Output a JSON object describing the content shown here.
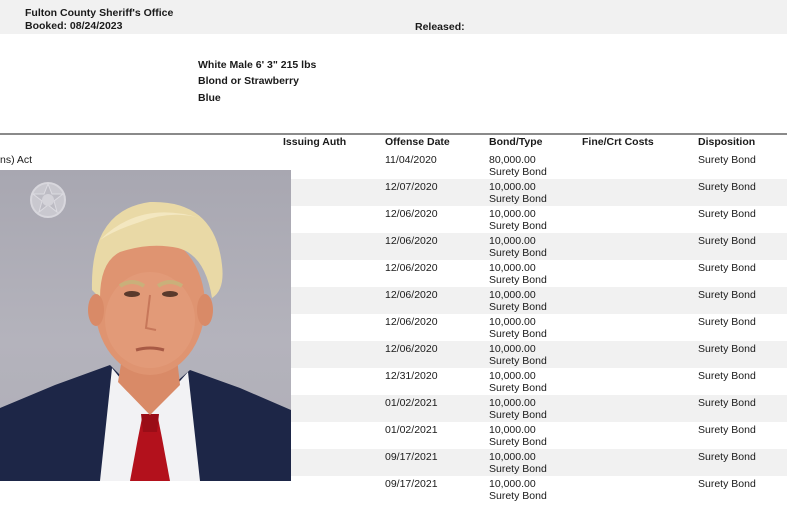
{
  "header": {
    "office": "Fulton County Sheriff's Office",
    "booked": "Booked: 08/24/2023",
    "released": "Released:"
  },
  "description": {
    "line1": "White  Male  6' 3\"   215 lbs",
    "line2": "Blond or Strawberry",
    "line3": "Blue"
  },
  "table": {
    "headers": {
      "issuing_auth": "Issuing Auth",
      "offense_date": "Offense Date",
      "bond_type": "Bond/Type",
      "fine_costs": "Fine/Crt Costs",
      "disposition": "Disposition"
    },
    "rows": [
      {
        "charge": "ns) Act",
        "date": "11/04/2020",
        "amount": "80,000.00",
        "type": "Surety Bond",
        "disposition": "Surety Bond"
      },
      {
        "charge": "",
        "date": "12/07/2020",
        "amount": "10,000.00",
        "type": "Surety Bond",
        "disposition": "Surety Bond"
      },
      {
        "charge": "",
        "date": "12/06/2020",
        "amount": "10,000.00",
        "type": "Surety Bond",
        "disposition": "Surety Bond"
      },
      {
        "charge": "",
        "date": "12/06/2020",
        "amount": "10,000.00",
        "type": "Surety Bond",
        "disposition": "Surety Bond"
      },
      {
        "charge": "",
        "date": "12/06/2020",
        "amount": "10,000.00",
        "type": "Surety Bond",
        "disposition": "Surety Bond"
      },
      {
        "charge": "",
        "date": "12/06/2020",
        "amount": "10,000.00",
        "type": "Surety Bond",
        "disposition": "Surety Bond"
      },
      {
        "charge": "",
        "date": "12/06/2020",
        "amount": "10,000.00",
        "type": "Surety Bond",
        "disposition": "Surety Bond"
      },
      {
        "charge": "",
        "date": "12/06/2020",
        "amount": "10,000.00",
        "type": "Surety Bond",
        "disposition": "Surety Bond"
      },
      {
        "charge": "",
        "date": "12/31/2020",
        "amount": "10,000.00",
        "type": "Surety Bond",
        "disposition": "Surety Bond"
      },
      {
        "charge": "",
        "date": "01/02/2021",
        "amount": "10,000.00",
        "type": "Surety Bond",
        "disposition": "Surety Bond"
      },
      {
        "charge": "",
        "date": "01/02/2021",
        "amount": "10,000.00",
        "type": "Surety Bond",
        "disposition": "Surety Bond"
      },
      {
        "charge": "",
        "date": "09/17/2021",
        "amount": "10,000.00",
        "type": "Surety Bond",
        "disposition": "Surety Bond"
      },
      {
        "charge": "",
        "date": "09/17/2021",
        "amount": "10,000.00",
        "type": "Surety Bond",
        "disposition": "Surety Bond"
      }
    ]
  },
  "photo": {
    "subject": "booking-photo",
    "tie_color": "#b3111c",
    "suit_color": "#1d2647"
  }
}
